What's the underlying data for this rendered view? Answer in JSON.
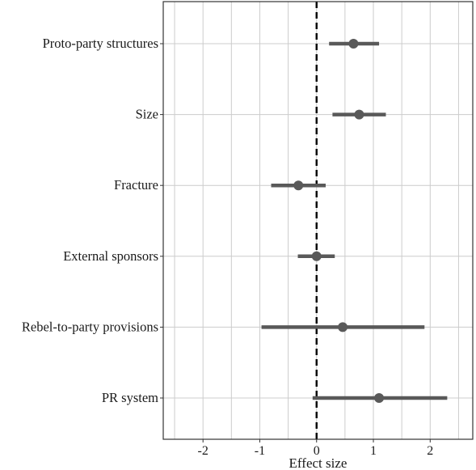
{
  "chart_data": {
    "type": "forest",
    "title": "",
    "xlabel": "Effect size",
    "ylabel": "",
    "xlim": [
      -2.7,
      2.75
    ],
    "x_ticks": [
      -2,
      -1,
      0,
      1,
      2
    ],
    "x_tick_labels": [
      "-2",
      "-1",
      "0",
      "1",
      "2"
    ],
    "reference_line": 0,
    "grid": true,
    "colors": {
      "point": "#595959",
      "grid": "#cccccc",
      "reference": "#000000",
      "frame": "#333333"
    },
    "rows": [
      {
        "label": "Proto-party structures",
        "estimate": 0.65,
        "lower": 0.22,
        "upper": 1.1
      },
      {
        "label": "Size",
        "estimate": 0.75,
        "lower": 0.28,
        "upper": 1.22
      },
      {
        "label": "Fracture",
        "estimate": -0.32,
        "lower": -0.8,
        "upper": 0.16
      },
      {
        "label": "External sponsors",
        "estimate": 0.0,
        "lower": -0.33,
        "upper": 0.32
      },
      {
        "label": "Rebel-to-party provisions",
        "estimate": 0.46,
        "lower": -0.97,
        "upper": 1.9
      },
      {
        "label": "PR system",
        "estimate": 1.1,
        "lower": -0.07,
        "upper": 2.3
      }
    ]
  }
}
